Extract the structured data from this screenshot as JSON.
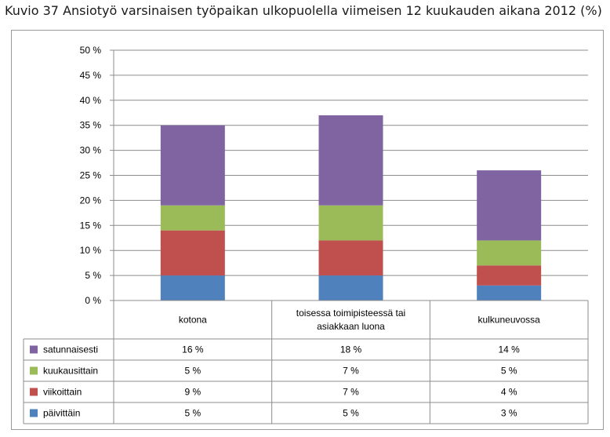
{
  "title": "Kuvio 37 Ansiotyö varsinaisen työpaikan ulkopuolella viimeisen 12 kuukauden aikana 2012 (%)",
  "chart_data": {
    "type": "bar",
    "stacked": true,
    "categories": [
      [
        "kotona"
      ],
      [
        "toisessa toimipisteessä tai",
        "asiakkaan luona"
      ],
      [
        "kulkuneuvossa"
      ]
    ],
    "series": [
      {
        "name": "päivittäin",
        "values": [
          5,
          5,
          3
        ],
        "labels": [
          "5 %",
          "5 %",
          "3 %"
        ],
        "color": "#4f81bd"
      },
      {
        "name": "viikoittain",
        "values": [
          9,
          7,
          4
        ],
        "labels": [
          "9 %",
          "7 %",
          "4 %"
        ],
        "color": "#c0504d"
      },
      {
        "name": "kuukausittain",
        "values": [
          5,
          7,
          5
        ],
        "labels": [
          "5 %",
          "7 %",
          "5 %"
        ],
        "color": "#9bbb59"
      },
      {
        "name": "satunnaisesti",
        "values": [
          16,
          18,
          14
        ],
        "labels": [
          "16 %",
          "18 %",
          "14 %"
        ],
        "color": "#8064a2"
      }
    ],
    "table_row_order": [
      "satunnaisesti",
      "kuukausittain",
      "viikoittain",
      "päivittäin"
    ],
    "ylim": [
      0,
      50
    ],
    "yticks": [
      "0 %",
      "5 %",
      "10 %",
      "15 %",
      "20 %",
      "25 %",
      "30 %",
      "35 %",
      "40 %",
      "45 %",
      "50 %"
    ],
    "grid": true,
    "legend": "data table"
  }
}
